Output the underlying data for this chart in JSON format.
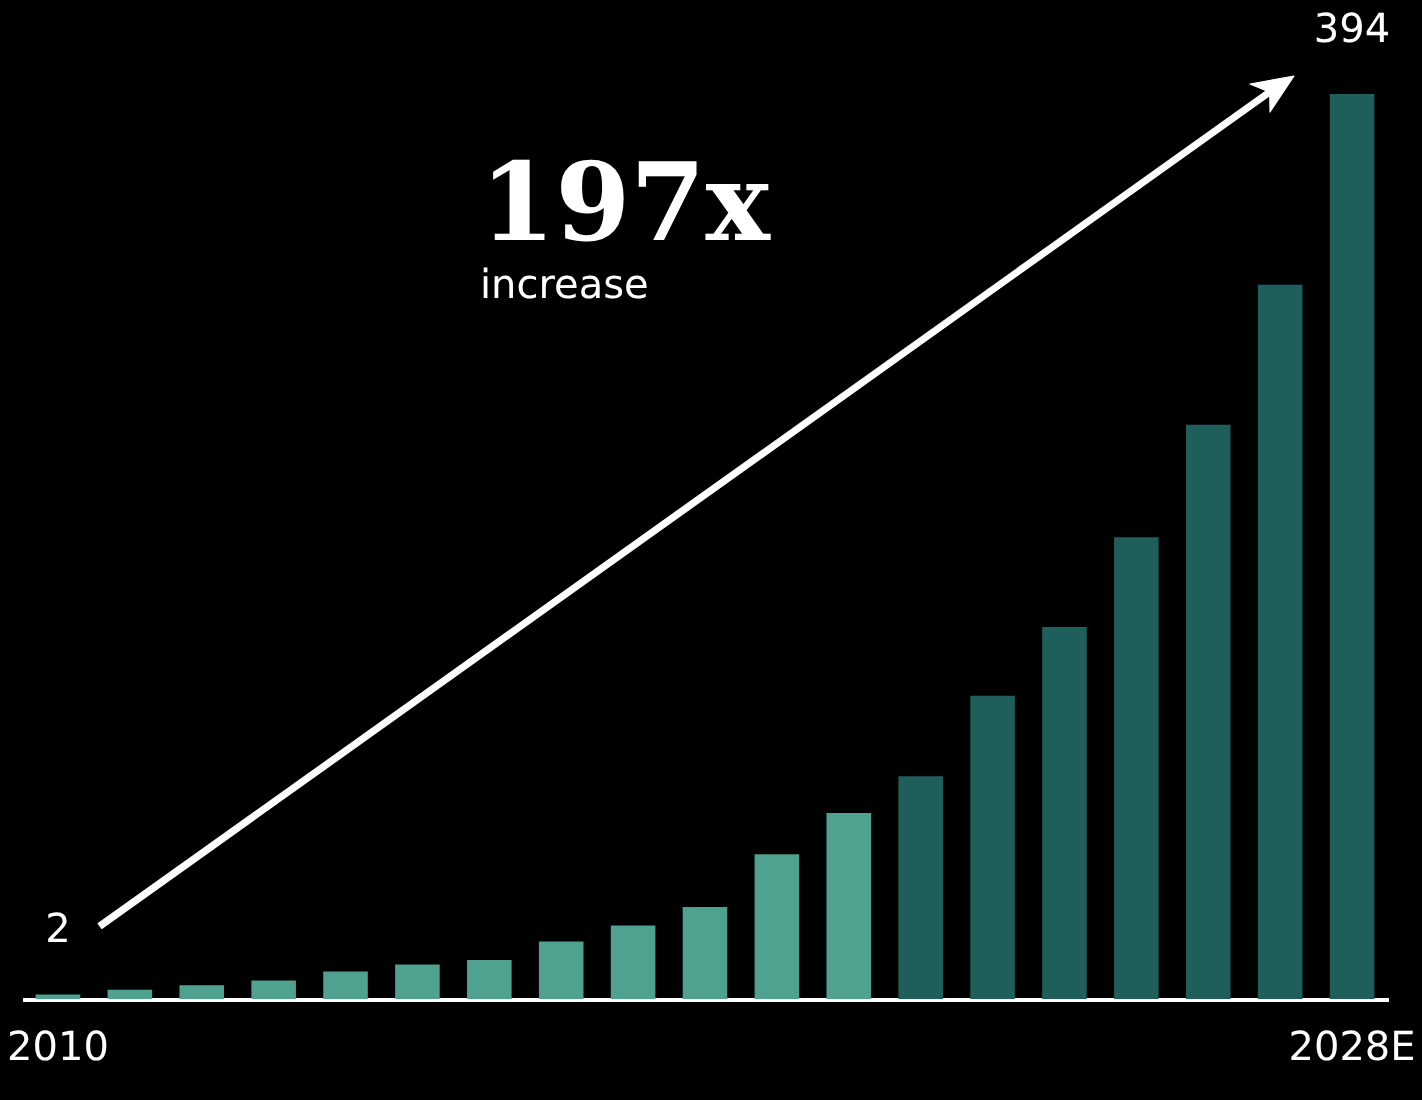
{
  "chart_data": {
    "type": "bar",
    "categories": [
      "2010",
      null,
      null,
      null,
      null,
      null,
      null,
      null,
      null,
      null,
      null,
      null,
      null,
      null,
      null,
      null,
      null,
      null,
      "2028E"
    ],
    "values": [
      2,
      4,
      6,
      8,
      12,
      15,
      17,
      25,
      32,
      40,
      63,
      81,
      97,
      132,
      162,
      201,
      250,
      311,
      394
    ],
    "colors": [
      "#4fa28f",
      "#4fa28f",
      "#4fa28f",
      "#4fa28f",
      "#4fa28f",
      "#4fa28f",
      "#4fa28f",
      "#4fa28f",
      "#4fa28f",
      "#4fa28f",
      "#4fa28f",
      "#4fa28f",
      "#1e5f5c",
      "#1e5f5c",
      "#1e5f5c",
      "#1e5f5c",
      "#1e5f5c",
      "#1e5f5c",
      "#1e5f5c"
    ],
    "value_labels": [
      "2",
      null,
      null,
      null,
      null,
      null,
      null,
      null,
      null,
      null,
      null,
      null,
      null,
      null,
      null,
      null,
      null,
      null,
      "394"
    ],
    "annotations": [
      "197x",
      "increase"
    ]
  }
}
